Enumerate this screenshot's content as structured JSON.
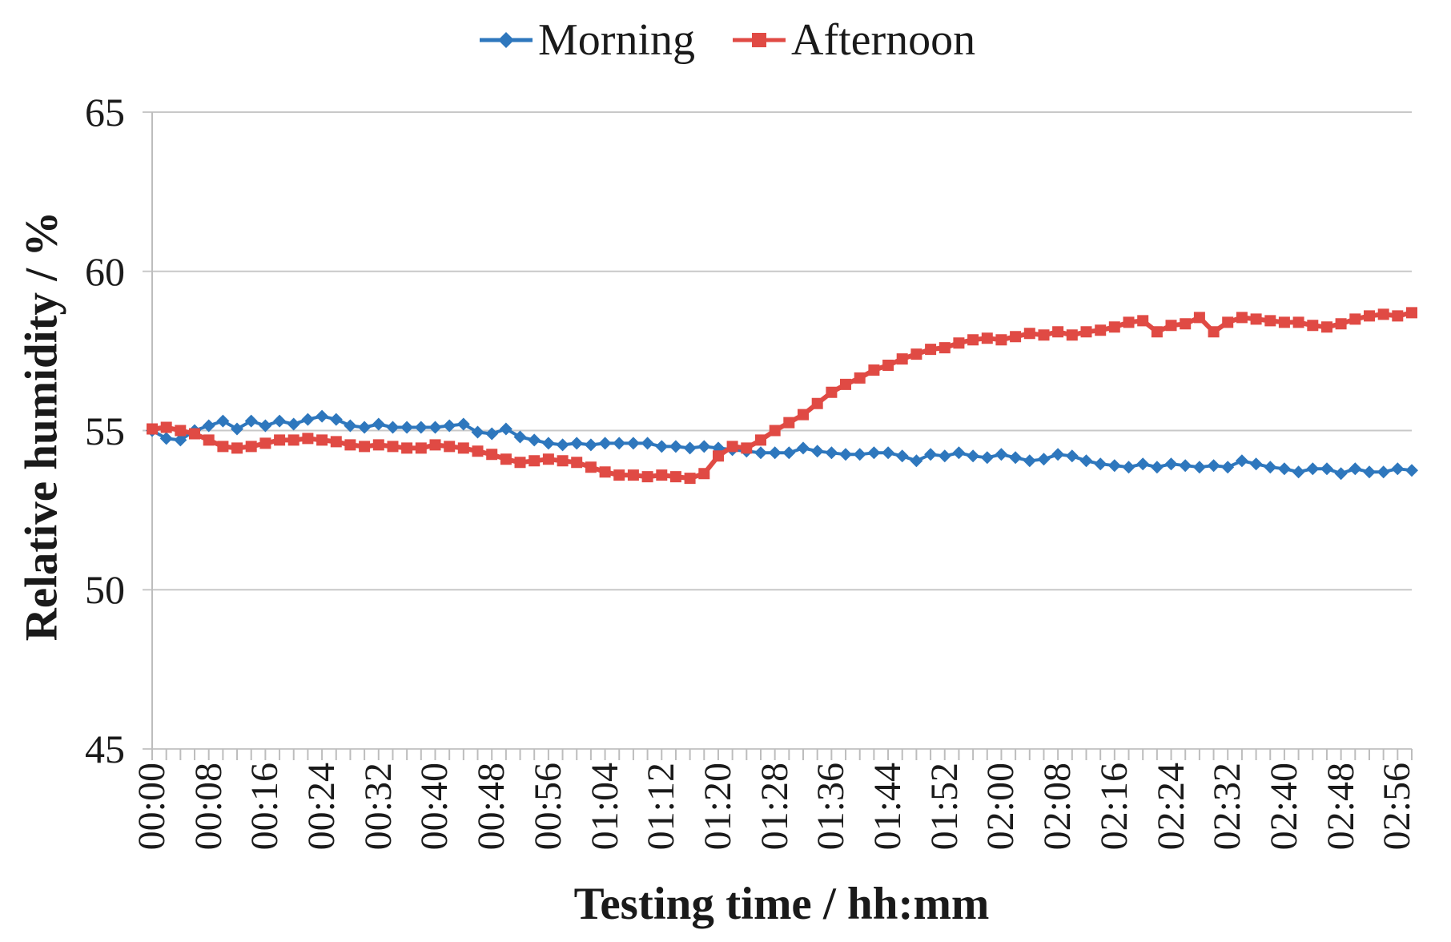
{
  "axes": {
    "x_title": "Testing time / hh:mm",
    "y_title": "Relative humidity / %"
  },
  "colors": {
    "background": "#FFFFFF",
    "grid": "#C8C8C8",
    "axis": "#BDBDBD",
    "text": "#1A1A1A",
    "morning": "#2E77BD",
    "afternoon": "#E04A44"
  },
  "chart_data": {
    "type": "line",
    "title": "",
    "xlabel": "Testing time / hh:mm",
    "ylabel": "Relative humidity / %",
    "ylim": [
      45,
      65
    ],
    "y_ticks": [
      65,
      60,
      55,
      50,
      45
    ],
    "grid": "horizontal-major",
    "legend_position": "top-center",
    "xlim_minutes": [
      0,
      178
    ],
    "minor_tick_step_minutes": 2,
    "x_tick_minutes": [
      0,
      8,
      16,
      24,
      32,
      40,
      48,
      56,
      64,
      72,
      80,
      88,
      96,
      104,
      112,
      120,
      128,
      136,
      144,
      152,
      160,
      168,
      176
    ],
    "x_tick_labels": [
      "00:00",
      "00:08",
      "00:16",
      "00:24",
      "00:32",
      "00:40",
      "00:48",
      "00:56",
      "01:04",
      "01:12",
      "01:20",
      "01:28",
      "01:36",
      "01:44",
      "01:52",
      "02:00",
      "02:08",
      "02:16",
      "02:24",
      "02:32",
      "02:40",
      "02:48",
      "02:56"
    ],
    "x_minutes": [
      0,
      2,
      4,
      6,
      8,
      10,
      12,
      14,
      16,
      18,
      20,
      22,
      24,
      26,
      28,
      30,
      32,
      34,
      36,
      38,
      40,
      42,
      44,
      46,
      48,
      50,
      52,
      54,
      56,
      58,
      60,
      62,
      64,
      66,
      68,
      70,
      72,
      74,
      76,
      78,
      80,
      82,
      84,
      86,
      88,
      90,
      92,
      94,
      96,
      98,
      100,
      102,
      104,
      106,
      108,
      110,
      112,
      114,
      116,
      118,
      120,
      122,
      124,
      126,
      128,
      130,
      132,
      134,
      136,
      138,
      140,
      142,
      144,
      146,
      148,
      150,
      152,
      154,
      156,
      158,
      160,
      162,
      164,
      166,
      168,
      170,
      172,
      174,
      176,
      178
    ],
    "series": [
      {
        "name": "Morning",
        "color": "#2E77BD",
        "marker": "diamond",
        "values": [
          55.0,
          54.75,
          54.7,
          55.0,
          55.15,
          55.3,
          55.05,
          55.3,
          55.15,
          55.3,
          55.2,
          55.35,
          55.45,
          55.35,
          55.15,
          55.1,
          55.2,
          55.1,
          55.1,
          55.1,
          55.1,
          55.15,
          55.2,
          54.95,
          54.9,
          55.05,
          54.8,
          54.7,
          54.6,
          54.55,
          54.6,
          54.55,
          54.6,
          54.6,
          54.6,
          54.6,
          54.5,
          54.5,
          54.45,
          54.5,
          54.45,
          54.4,
          54.35,
          54.3,
          54.3,
          54.3,
          54.45,
          54.35,
          54.3,
          54.25,
          54.25,
          54.3,
          54.3,
          54.2,
          54.05,
          54.25,
          54.2,
          54.3,
          54.2,
          54.15,
          54.25,
          54.15,
          54.05,
          54.1,
          54.25,
          54.2,
          54.05,
          53.95,
          53.9,
          53.85,
          53.95,
          53.85,
          53.95,
          53.9,
          53.85,
          53.9,
          53.85,
          54.05,
          53.95,
          53.85,
          53.8,
          53.7,
          53.8,
          53.8,
          53.65,
          53.8,
          53.7,
          53.7,
          53.8,
          53.75
        ]
      },
      {
        "name": "Afternoon",
        "color": "#E04A44",
        "marker": "square",
        "values": [
          55.05,
          55.1,
          55.0,
          54.9,
          54.7,
          54.5,
          54.45,
          54.5,
          54.6,
          54.7,
          54.7,
          54.75,
          54.7,
          54.65,
          54.55,
          54.5,
          54.55,
          54.5,
          54.45,
          54.45,
          54.55,
          54.5,
          54.45,
          54.35,
          54.25,
          54.1,
          54.0,
          54.05,
          54.1,
          54.05,
          54.0,
          53.85,
          53.7,
          53.6,
          53.6,
          53.55,
          53.6,
          53.55,
          53.5,
          53.65,
          54.2,
          54.5,
          54.45,
          54.7,
          55.0,
          55.25,
          55.5,
          55.85,
          56.2,
          56.45,
          56.65,
          56.9,
          57.05,
          57.25,
          57.4,
          57.55,
          57.6,
          57.75,
          57.85,
          57.9,
          57.85,
          57.95,
          58.05,
          58.0,
          58.1,
          58.0,
          58.1,
          58.15,
          58.25,
          58.4,
          58.45,
          58.1,
          58.3,
          58.35,
          58.55,
          58.1,
          58.4,
          58.55,
          58.5,
          58.45,
          58.4,
          58.4,
          58.3,
          58.25,
          58.35,
          58.5,
          58.6,
          58.65,
          58.6,
          58.7
        ]
      }
    ]
  }
}
